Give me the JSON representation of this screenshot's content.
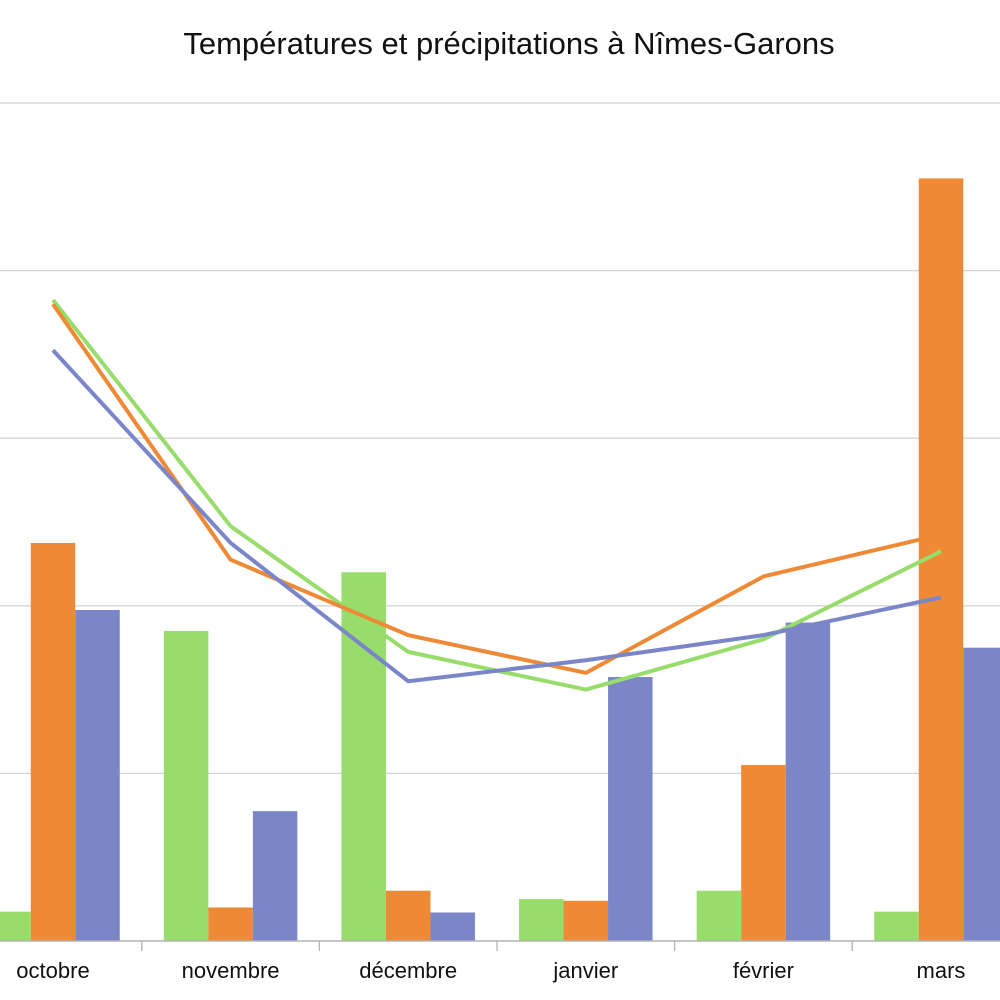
{
  "chart_data": {
    "type": "bar",
    "title": "Températures et précipitations à Nîmes-Garons",
    "xlabel": "",
    "ylabel": "",
    "categories": [
      "octobre",
      "novembre",
      "décembre",
      "janvier",
      "février",
      "mars"
    ],
    "ylim": [
      0,
      100
    ],
    "grid": true,
    "bar_series": [
      {
        "color": "#98dd6b",
        "values": [
          3.5,
          37,
          44,
          5,
          6,
          3.5
        ]
      },
      {
        "color": "#ee8a35",
        "values": [
          47.5,
          4,
          6,
          4.8,
          21,
          91
        ]
      },
      {
        "color": "#7b86c9",
        "values": [
          39.5,
          15.5,
          3.4,
          31.5,
          38,
          35
        ]
      }
    ],
    "line_series": [
      {
        "color": "#98dd6b",
        "values": [
          76.5,
          49.5,
          34.5,
          30,
          36,
          46.5
        ]
      },
      {
        "color": "#ee8a35",
        "values": [
          76,
          45.5,
          36.5,
          32,
          43.5,
          48.5
        ]
      },
      {
        "color": "#7b86c9",
        "values": [
          70.5,
          47.5,
          31,
          33.5,
          36.5,
          41
        ]
      }
    ]
  }
}
